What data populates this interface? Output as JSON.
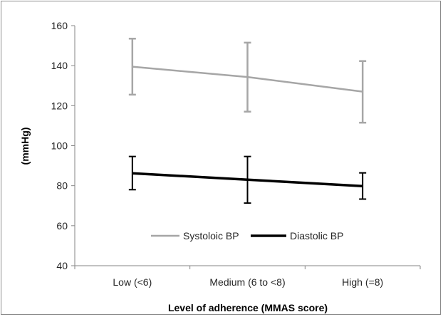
{
  "chart_data": {
    "type": "line",
    "categories": [
      "Low (<6)",
      "Medium (6 to <8)",
      "High (=8)"
    ],
    "series": [
      {
        "name": "Systoloic BP",
        "values": [
          139.5,
          134.3,
          127.0
        ],
        "error_low": [
          125.5,
          117.0,
          111.5
        ],
        "error_high": [
          153.5,
          151.5,
          142.3
        ],
        "color": "#a6a6a6"
      },
      {
        "name": "Diastolic BP",
        "values": [
          86.2,
          83.0,
          79.8
        ],
        "error_low": [
          78.0,
          71.3,
          73.3
        ],
        "error_high": [
          94.6,
          94.6,
          86.4
        ],
        "color": "#000000"
      }
    ],
    "xlabel": "Level of adherence (MMAS score)",
    "ylabel": "(mmHg)",
    "ylim": [
      40,
      160
    ],
    "yticks": [
      40,
      60,
      80,
      100,
      120,
      140,
      160
    ],
    "grid": false,
    "legend_position": "inside-bottom-center"
  }
}
